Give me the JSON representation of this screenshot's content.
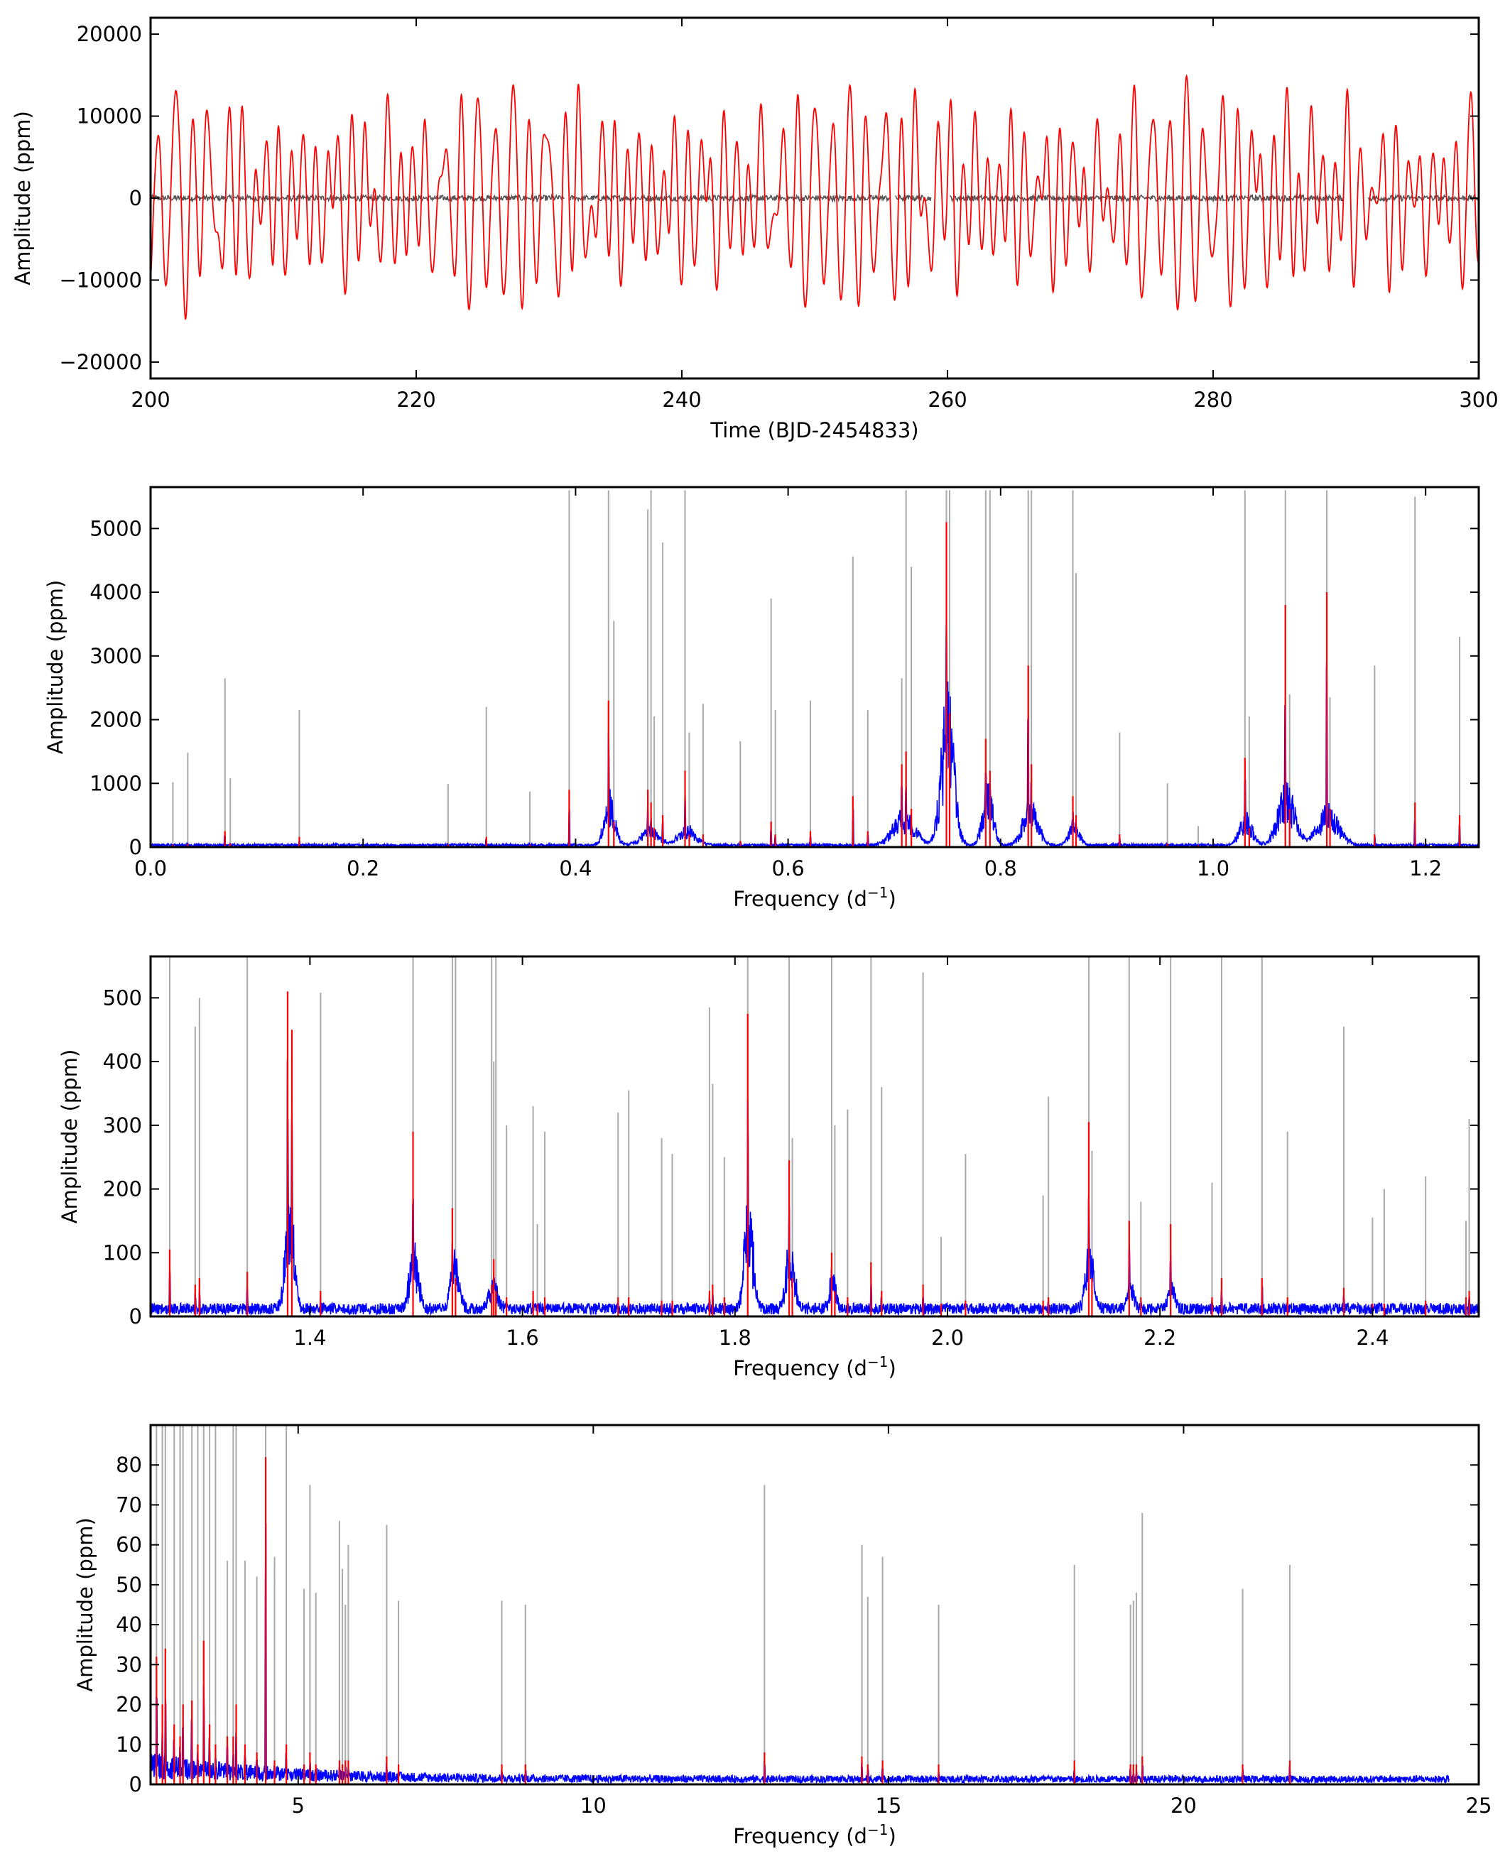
{
  "colors": {
    "model": "#ff0000",
    "residual": "#555555",
    "spectrum": "#0000ff",
    "fit": "#ff0000",
    "frequencies": "#aaaaaa",
    "axes": "#000000"
  },
  "chart_data": [
    {
      "id": "panel1",
      "type": "line",
      "xlabel": "Time (BJD-2454833)",
      "ylabel": "Amplitude (ppm)",
      "xlim": [
        200,
        300
      ],
      "ylim": [
        -22000,
        22000
      ],
      "xticks": [
        200,
        220,
        240,
        260,
        280,
        300
      ],
      "yticks": [
        -20000,
        -10000,
        0,
        10000,
        20000
      ],
      "series": [
        {
          "role": "model",
          "color": "#ff0000"
        },
        {
          "role": "residual",
          "color": "#555555"
        }
      ],
      "gaps": [
        [
          231.2,
          231.6
        ],
        [
          255.7,
          256.1
        ],
        [
          258.8,
          260.2
        ],
        [
          289.9,
          291.7
        ]
      ]
    },
    {
      "id": "panel2",
      "type": "line",
      "xlabel": "Frequency (d",
      "xlabel_sup": "−1",
      "xlabel_end": ")",
      "ylabel": "Amplitude (ppm)",
      "xlim": [
        0.0,
        1.25
      ],
      "ylim": [
        0,
        5650
      ],
      "xticks": [
        0.0,
        0.2,
        0.4,
        0.6,
        0.8,
        1.0,
        1.2
      ],
      "xticklabels": [
        "0.0",
        "0.2",
        "0.4",
        "0.6",
        "0.8",
        "1.0",
        "1.2"
      ],
      "yticks": [
        0,
        1000,
        2000,
        3000,
        4000,
        5000
      ],
      "noise": 30,
      "peaks": [
        {
          "f": 0.021,
          "grey": 1020,
          "red": 40
        },
        {
          "f": 0.035,
          "grey": 1480,
          "red": 50
        },
        {
          "f": 0.07,
          "grey": 2650,
          "red": 250
        },
        {
          "f": 0.075,
          "grey": 1080,
          "red": 60
        },
        {
          "f": 0.14,
          "grey": 2150,
          "red": 160
        },
        {
          "f": 0.28,
          "grey": 990,
          "red": 40
        },
        {
          "f": 0.316,
          "grey": 2200,
          "red": 160
        },
        {
          "f": 0.357,
          "grey": 870,
          "red": 40
        },
        {
          "f": 0.394,
          "grey": 5600,
          "red": 900
        },
        {
          "f": 0.431,
          "grey": 5600,
          "red": 2300
        },
        {
          "f": 0.436,
          "grey": 3550,
          "red": 400
        },
        {
          "f": 0.468,
          "grey": 5300,
          "red": 900
        },
        {
          "f": 0.471,
          "grey": 5600,
          "red": 700
        },
        {
          "f": 0.474,
          "grey": 2050,
          "red": 300
        },
        {
          "f": 0.482,
          "grey": 4780,
          "red": 500
        },
        {
          "f": 0.503,
          "grey": 5600,
          "red": 1200
        },
        {
          "f": 0.507,
          "grey": 1800,
          "red": 200
        },
        {
          "f": 0.52,
          "grey": 2250,
          "red": 200
        },
        {
          "f": 0.555,
          "grey": 1660,
          "red": 100
        },
        {
          "f": 0.584,
          "grey": 3900,
          "red": 400
        },
        {
          "f": 0.588,
          "grey": 2150,
          "red": 200
        },
        {
          "f": 0.621,
          "grey": 2300,
          "red": 250
        },
        {
          "f": 0.661,
          "grey": 4560,
          "red": 800
        },
        {
          "f": 0.675,
          "grey": 2150,
          "red": 250
        },
        {
          "f": 0.707,
          "grey": 2650,
          "red": 1300
        },
        {
          "f": 0.711,
          "grey": 5600,
          "red": 1500
        },
        {
          "f": 0.716,
          "grey": 4400,
          "red": 600
        },
        {
          "f": 0.749,
          "grey": 5600,
          "red": 5100
        },
        {
          "f": 0.752,
          "grey": 5600,
          "red": 2100
        },
        {
          "f": 0.786,
          "grey": 5600,
          "red": 1700
        },
        {
          "f": 0.79,
          "grey": 5600,
          "red": 1200
        },
        {
          "f": 0.826,
          "grey": 5600,
          "red": 2850
        },
        {
          "f": 0.829,
          "grey": 5600,
          "red": 1300
        },
        {
          "f": 0.868,
          "grey": 5600,
          "red": 800
        },
        {
          "f": 0.871,
          "grey": 4300,
          "red": 500
        },
        {
          "f": 0.912,
          "grey": 1800,
          "red": 200
        },
        {
          "f": 0.957,
          "grey": 1000,
          "red": 60
        },
        {
          "f": 0.986,
          "grey": 330,
          "red": 30
        },
        {
          "f": 1.03,
          "grey": 5600,
          "red": 1400
        },
        {
          "f": 1.034,
          "grey": 2050,
          "red": 300
        },
        {
          "f": 1.068,
          "grey": 5600,
          "red": 3800
        },
        {
          "f": 1.072,
          "grey": 2400,
          "red": 600
        },
        {
          "f": 1.107,
          "grey": 5600,
          "red": 4000
        },
        {
          "f": 1.11,
          "grey": 2350,
          "red": 600
        },
        {
          "f": 1.152,
          "grey": 2850,
          "red": 200
        },
        {
          "f": 1.19,
          "grey": 5500,
          "red": 700
        },
        {
          "f": 1.232,
          "grey": 3300,
          "red": 500
        }
      ],
      "blue_bumps": [
        {
          "f": 0.432,
          "a": 700,
          "w": 0.005
        },
        {
          "f": 0.47,
          "a": 250,
          "w": 0.008
        },
        {
          "f": 0.505,
          "a": 250,
          "w": 0.008
        },
        {
          "f": 0.709,
          "a": 450,
          "w": 0.01
        },
        {
          "f": 0.75,
          "a": 2000,
          "w": 0.006
        },
        {
          "f": 0.788,
          "a": 800,
          "w": 0.005
        },
        {
          "f": 0.828,
          "a": 600,
          "w": 0.007
        },
        {
          "f": 0.869,
          "a": 300,
          "w": 0.005
        },
        {
          "f": 1.031,
          "a": 400,
          "w": 0.006
        },
        {
          "f": 1.069,
          "a": 800,
          "w": 0.008
        },
        {
          "f": 1.108,
          "a": 500,
          "w": 0.01
        }
      ]
    },
    {
      "id": "panel3",
      "type": "line",
      "xlabel": "Frequency (d",
      "xlabel_sup": "−1",
      "xlabel_end": ")",
      "ylabel": "Amplitude (ppm)",
      "xlim": [
        1.25,
        2.5
      ],
      "ylim": [
        0,
        565
      ],
      "xticks": [
        1.4,
        1.6,
        1.8,
        2.0,
        2.2,
        2.4
      ],
      "xticklabels": [
        "1.4",
        "1.6",
        "1.8",
        "2.0",
        "2.2",
        "2.4"
      ],
      "yticks": [
        0,
        100,
        200,
        300,
        400,
        500
      ],
      "noise": 12,
      "peaks": [
        {
          "f": 1.268,
          "grey": 565,
          "red": 105
        },
        {
          "f": 1.292,
          "grey": 455,
          "red": 50
        },
        {
          "f": 1.296,
          "grey": 500,
          "red": 60
        },
        {
          "f": 1.341,
          "grey": 565,
          "red": 70
        },
        {
          "f": 1.379,
          "grey": 510,
          "red": 510
        },
        {
          "f": 1.383,
          "grey": 150,
          "red": 450
        },
        {
          "f": 1.41,
          "grey": 508,
          "red": 40
        },
        {
          "f": 1.497,
          "grey": 565,
          "red": 290
        },
        {
          "f": 1.534,
          "grey": 565,
          "red": 170
        },
        {
          "f": 1.537,
          "grey": 565,
          "red": 60
        },
        {
          "f": 1.571,
          "grey": 565,
          "red": 50
        },
        {
          "f": 1.573,
          "grey": 400,
          "red": 90
        },
        {
          "f": 1.575,
          "grey": 565,
          "red": 40
        },
        {
          "f": 1.585,
          "grey": 300,
          "red": 30
        },
        {
          "f": 1.61,
          "grey": 330,
          "red": 40
        },
        {
          "f": 1.614,
          "grey": 145,
          "red": 20
        },
        {
          "f": 1.621,
          "grey": 290,
          "red": 30
        },
        {
          "f": 1.69,
          "grey": 320,
          "red": 30
        },
        {
          "f": 1.7,
          "grey": 355,
          "red": 30
        },
        {
          "f": 1.731,
          "grey": 280,
          "red": 25
        },
        {
          "f": 1.741,
          "grey": 255,
          "red": 25
        },
        {
          "f": 1.776,
          "grey": 485,
          "red": 40
        },
        {
          "f": 1.779,
          "grey": 365,
          "red": 50
        },
        {
          "f": 1.79,
          "grey": 250,
          "red": 30
        },
        {
          "f": 1.812,
          "grey": 565,
          "red": 475
        },
        {
          "f": 1.851,
          "grey": 565,
          "red": 245
        },
        {
          "f": 1.854,
          "grey": 280,
          "red": 60
        },
        {
          "f": 1.891,
          "grey": 565,
          "red": 100
        },
        {
          "f": 1.894,
          "grey": 300,
          "red": 40
        },
        {
          "f": 1.906,
          "grey": 325,
          "red": 30
        },
        {
          "f": 1.928,
          "grey": 565,
          "red": 85
        },
        {
          "f": 1.938,
          "grey": 360,
          "red": 40
        },
        {
          "f": 1.977,
          "grey": 540,
          "red": 50
        },
        {
          "f": 1.994,
          "grey": 125,
          "red": 20
        },
        {
          "f": 2.017,
          "grey": 255,
          "red": 25
        },
        {
          "f": 2.09,
          "grey": 190,
          "red": 25
        },
        {
          "f": 2.095,
          "grey": 345,
          "red": 30
        },
        {
          "f": 2.133,
          "grey": 565,
          "red": 305
        },
        {
          "f": 2.136,
          "grey": 260,
          "red": 60
        },
        {
          "f": 2.171,
          "grey": 565,
          "red": 150
        },
        {
          "f": 2.182,
          "grey": 180,
          "red": 30
        },
        {
          "f": 2.21,
          "grey": 565,
          "red": 145
        },
        {
          "f": 2.249,
          "grey": 210,
          "red": 30
        },
        {
          "f": 2.258,
          "grey": 565,
          "red": 60
        },
        {
          "f": 2.296,
          "grey": 565,
          "red": 60
        },
        {
          "f": 2.32,
          "grey": 290,
          "red": 30
        },
        {
          "f": 2.373,
          "grey": 455,
          "red": 45
        },
        {
          "f": 2.4,
          "grey": 155,
          "red": 20
        },
        {
          "f": 2.411,
          "grey": 200,
          "red": 20
        },
        {
          "f": 2.45,
          "grey": 220,
          "red": 25
        },
        {
          "f": 2.488,
          "grey": 150,
          "red": 30
        },
        {
          "f": 2.491,
          "grey": 310,
          "red": 40
        }
      ],
      "blue_bumps": [
        {
          "f": 1.381,
          "a": 160,
          "w": 0.004
        },
        {
          "f": 1.498,
          "a": 90,
          "w": 0.004
        },
        {
          "f": 1.536,
          "a": 70,
          "w": 0.004
        },
        {
          "f": 1.573,
          "a": 40,
          "w": 0.004
        },
        {
          "f": 1.813,
          "a": 150,
          "w": 0.004
        },
        {
          "f": 1.852,
          "a": 90,
          "w": 0.004
        },
        {
          "f": 1.892,
          "a": 50,
          "w": 0.003
        },
        {
          "f": 2.134,
          "a": 80,
          "w": 0.004
        },
        {
          "f": 2.172,
          "a": 40,
          "w": 0.003
        },
        {
          "f": 2.211,
          "a": 40,
          "w": 0.003
        }
      ]
    },
    {
      "id": "panel4",
      "type": "line",
      "xlabel": "Frequency (d",
      "xlabel_sup": "−1",
      "xlabel_end": ")",
      "ylabel": "Amplitude (ppm)",
      "xlim": [
        2.5,
        25
      ],
      "ylim": [
        0,
        90
      ],
      "xticks": [
        5,
        10,
        15,
        20,
        25
      ],
      "xticklabels": [
        "5",
        "10",
        "15",
        "20",
        "25"
      ],
      "yticks": [
        0,
        10,
        20,
        30,
        40,
        50,
        60,
        70,
        80
      ],
      "noise": 2.5,
      "noise_end": 24.5,
      "peaks": [
        {
          "f": 2.6,
          "grey": 90,
          "red": 32
        },
        {
          "f": 2.7,
          "grey": 90,
          "red": 20
        },
        {
          "f": 2.75,
          "grey": 90,
          "red": 34
        },
        {
          "f": 2.9,
          "grey": 90,
          "red": 15
        },
        {
          "f": 3.0,
          "grey": 90,
          "red": 12
        },
        {
          "f": 3.05,
          "grey": 90,
          "red": 20
        },
        {
          "f": 3.2,
          "grey": 90,
          "red": 21
        },
        {
          "f": 3.3,
          "grey": 90,
          "red": 10
        },
        {
          "f": 3.4,
          "grey": 90,
          "red": 36
        },
        {
          "f": 3.5,
          "grey": 90,
          "red": 15
        },
        {
          "f": 3.6,
          "grey": 90,
          "red": 10
        },
        {
          "f": 3.8,
          "grey": 56,
          "red": 12
        },
        {
          "f": 3.9,
          "grey": 90,
          "red": 12
        },
        {
          "f": 3.95,
          "grey": 90,
          "red": 20
        },
        {
          "f": 4.1,
          "grey": 56,
          "red": 10
        },
        {
          "f": 4.3,
          "grey": 52,
          "red": 8
        },
        {
          "f": 4.45,
          "grey": 90,
          "red": 82
        },
        {
          "f": 4.6,
          "grey": 57,
          "red": 6
        },
        {
          "f": 4.8,
          "grey": 90,
          "red": 10
        },
        {
          "f": 5.1,
          "grey": 49,
          "red": 5
        },
        {
          "f": 5.2,
          "grey": 75,
          "red": 8
        },
        {
          "f": 5.3,
          "grey": 48,
          "red": 5
        },
        {
          "f": 5.7,
          "grey": 66,
          "red": 6
        },
        {
          "f": 5.75,
          "grey": 54,
          "red": 5
        },
        {
          "f": 5.8,
          "grey": 45,
          "red": 6
        },
        {
          "f": 5.85,
          "grey": 60,
          "red": 6
        },
        {
          "f": 6.5,
          "grey": 65,
          "red": 7
        },
        {
          "f": 6.7,
          "grey": 46,
          "red": 5
        },
        {
          "f": 8.45,
          "grey": 46,
          "red": 5
        },
        {
          "f": 8.85,
          "grey": 45,
          "red": 5
        },
        {
          "f": 12.9,
          "grey": 75,
          "red": 8
        },
        {
          "f": 14.55,
          "grey": 60,
          "red": 7
        },
        {
          "f": 14.65,
          "grey": 47,
          "red": 5
        },
        {
          "f": 14.9,
          "grey": 57,
          "red": 6
        },
        {
          "f": 15.85,
          "grey": 45,
          "red": 5
        },
        {
          "f": 18.15,
          "grey": 55,
          "red": 6
        },
        {
          "f": 19.1,
          "grey": 45,
          "red": 5
        },
        {
          "f": 19.15,
          "grey": 46,
          "red": 5
        },
        {
          "f": 19.2,
          "grey": 48,
          "red": 5
        },
        {
          "f": 19.3,
          "grey": 68,
          "red": 7
        },
        {
          "f": 21.0,
          "grey": 49,
          "red": 5
        },
        {
          "f": 21.8,
          "grey": 55,
          "red": 6
        }
      ],
      "blue_bumps": []
    }
  ]
}
